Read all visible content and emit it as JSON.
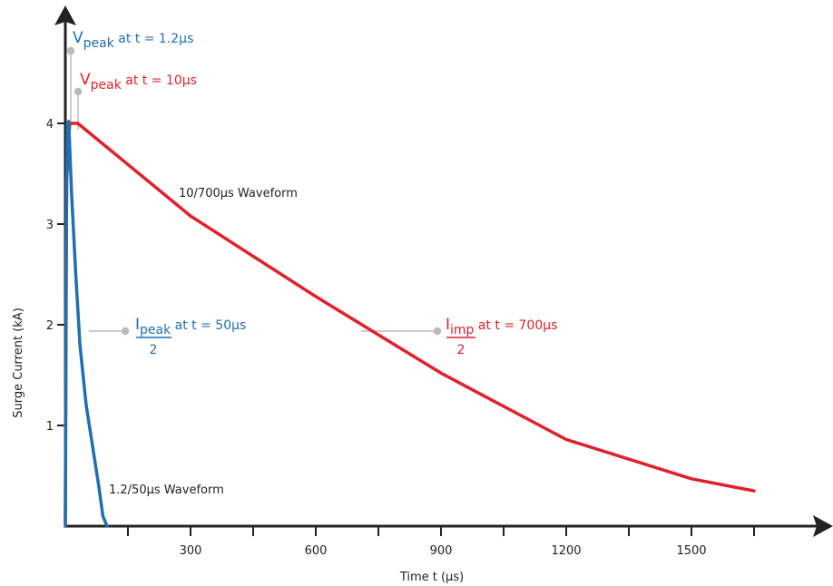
{
  "colors": {
    "blue": "#1f6fb2",
    "red": "#e2202c",
    "axis": "#222222",
    "leader": "#bbbbbb"
  },
  "chart_data": {
    "type": "line",
    "xlabel": "Time t (µs)",
    "ylabel": "Surge Current (kA)",
    "xlim": [
      0,
      1830
    ],
    "ylim": [
      0,
      5
    ],
    "x_ticks": [
      150,
      300,
      450,
      600,
      750,
      900,
      1050,
      1200,
      1350,
      1500,
      1650
    ],
    "x_tick_labels": [
      {
        "x": 300,
        "label": "300"
      },
      {
        "x": 600,
        "label": "600"
      },
      {
        "x": 900,
        "label": "900"
      },
      {
        "x": 1200,
        "label": "1200"
      },
      {
        "x": 1500,
        "label": "1500"
      }
    ],
    "y_ticks": [
      {
        "y": 1,
        "label": "1"
      },
      {
        "y": 2,
        "label": "2"
      },
      {
        "y": 3,
        "label": "3"
      },
      {
        "y": 4,
        "label": "4"
      }
    ],
    "grid": false,
    "series": [
      {
        "name": "1.2/50µs Waveform",
        "color": "#1f6fb2",
        "points": [
          [
            0,
            0
          ],
          [
            2,
            2.8
          ],
          [
            5,
            4.0
          ],
          [
            8,
            4.02
          ],
          [
            15,
            3.3
          ],
          [
            25,
            2.5
          ],
          [
            35,
            1.8
          ],
          [
            50,
            1.2
          ],
          [
            65,
            0.8
          ],
          [
            80,
            0.4
          ],
          [
            90,
            0.1
          ],
          [
            100,
            0
          ]
        ]
      },
      {
        "name": "10/700µs Waveform",
        "color": "#e2202c",
        "points": [
          [
            0,
            0
          ],
          [
            3,
            3.4
          ],
          [
            10,
            4.0
          ],
          [
            30,
            4.0
          ],
          [
            300,
            3.08
          ],
          [
            600,
            2.28
          ],
          [
            900,
            1.52
          ],
          [
            1200,
            0.86
          ],
          [
            1500,
            0.47
          ],
          [
            1650,
            0.35
          ]
        ]
      }
    ],
    "annotations": {
      "blue_peak": {
        "main": "V",
        "sub": "peak",
        "tail": " at t = 1.2µs"
      },
      "red_peak": {
        "main": "V",
        "sub": "peak",
        "tail": " at t = 10µs"
      },
      "blue_half": {
        "num_main": "I",
        "num_sub": "peak",
        "den": "2",
        "tail": " at t = 50µs"
      },
      "red_half": {
        "num_main": "I",
        "num_sub": "imp",
        "den": "2",
        "tail": " at t = 700µs"
      },
      "red_label": "10/700µs Waveform",
      "blue_label": "1.2/50µs Waveform"
    }
  }
}
